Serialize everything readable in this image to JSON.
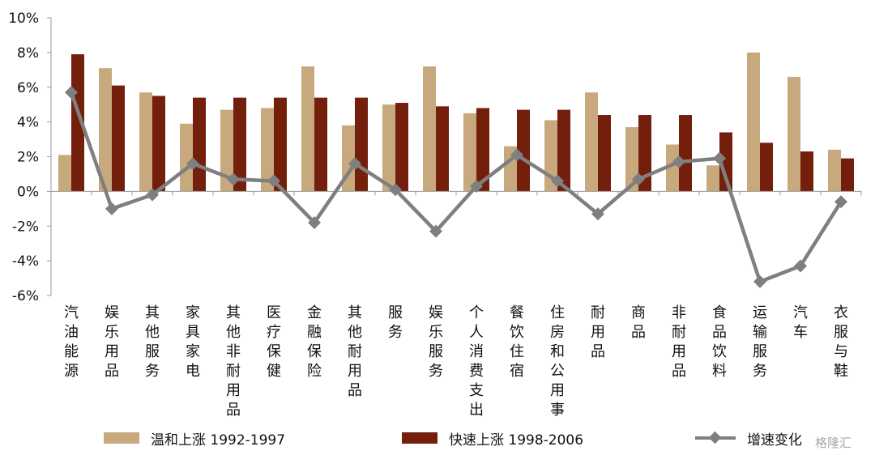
{
  "chart_data": {
    "type": "bar",
    "categories": [
      "汽油能源",
      "娱乐用品",
      "其他服务",
      "家具家电",
      "其他非耐用品",
      "医疗保健",
      "金融保险",
      "其他耐用品",
      "服务",
      "娱乐服务",
      "个人消费支出",
      "餐饮住宿",
      "住房和公用事业",
      "耐用品",
      "商品",
      "非耐用品",
      "食品饮料",
      "运输服务",
      "汽车",
      "衣服与鞋"
    ],
    "series": [
      {
        "name": "温和上涨 1992-1997",
        "type": "bar",
        "color": "#c8a97e",
        "values": [
          2.1,
          7.1,
          5.7,
          3.9,
          4.7,
          4.8,
          7.2,
          3.8,
          5.0,
          7.2,
          4.5,
          2.6,
          4.1,
          5.7,
          3.7,
          2.7,
          1.5,
          8.0,
          6.6,
          2.4
        ]
      },
      {
        "name": "快速上涨 1998-2006",
        "type": "bar",
        "color": "#741e0c",
        "values": [
          7.9,
          6.1,
          5.5,
          5.4,
          5.4,
          5.4,
          5.4,
          5.4,
          5.1,
          4.9,
          4.8,
          4.7,
          4.7,
          4.4,
          4.4,
          4.4,
          3.4,
          2.8,
          2.3,
          1.9
        ]
      },
      {
        "name": "增速变化",
        "type": "line",
        "color": "#7f7f7f",
        "marker": "diamond",
        "values": [
          5.7,
          -1.0,
          -0.2,
          1.6,
          0.7,
          0.6,
          -1.8,
          1.6,
          0.1,
          -2.3,
          0.3,
          2.1,
          0.6,
          -1.3,
          0.7,
          1.7,
          1.9,
          -5.2,
          -4.3,
          -0.6
        ]
      }
    ],
    "ylim": [
      -6,
      10
    ],
    "yticks": [
      -6,
      -4,
      -2,
      0,
      2,
      4,
      6,
      8,
      10
    ],
    "ytick_labels": [
      "-6%",
      "-4%",
      "-2%",
      "0%",
      "2%",
      "4%",
      "6%",
      "8%",
      "10%"
    ],
    "grid": false,
    "legend_position": "bottom"
  },
  "legend": {
    "item1": "温和上涨 1992-1997",
    "item2": "快速上涨 1998-2006",
    "item3": "增速变化"
  },
  "watermark": "格隆汇"
}
